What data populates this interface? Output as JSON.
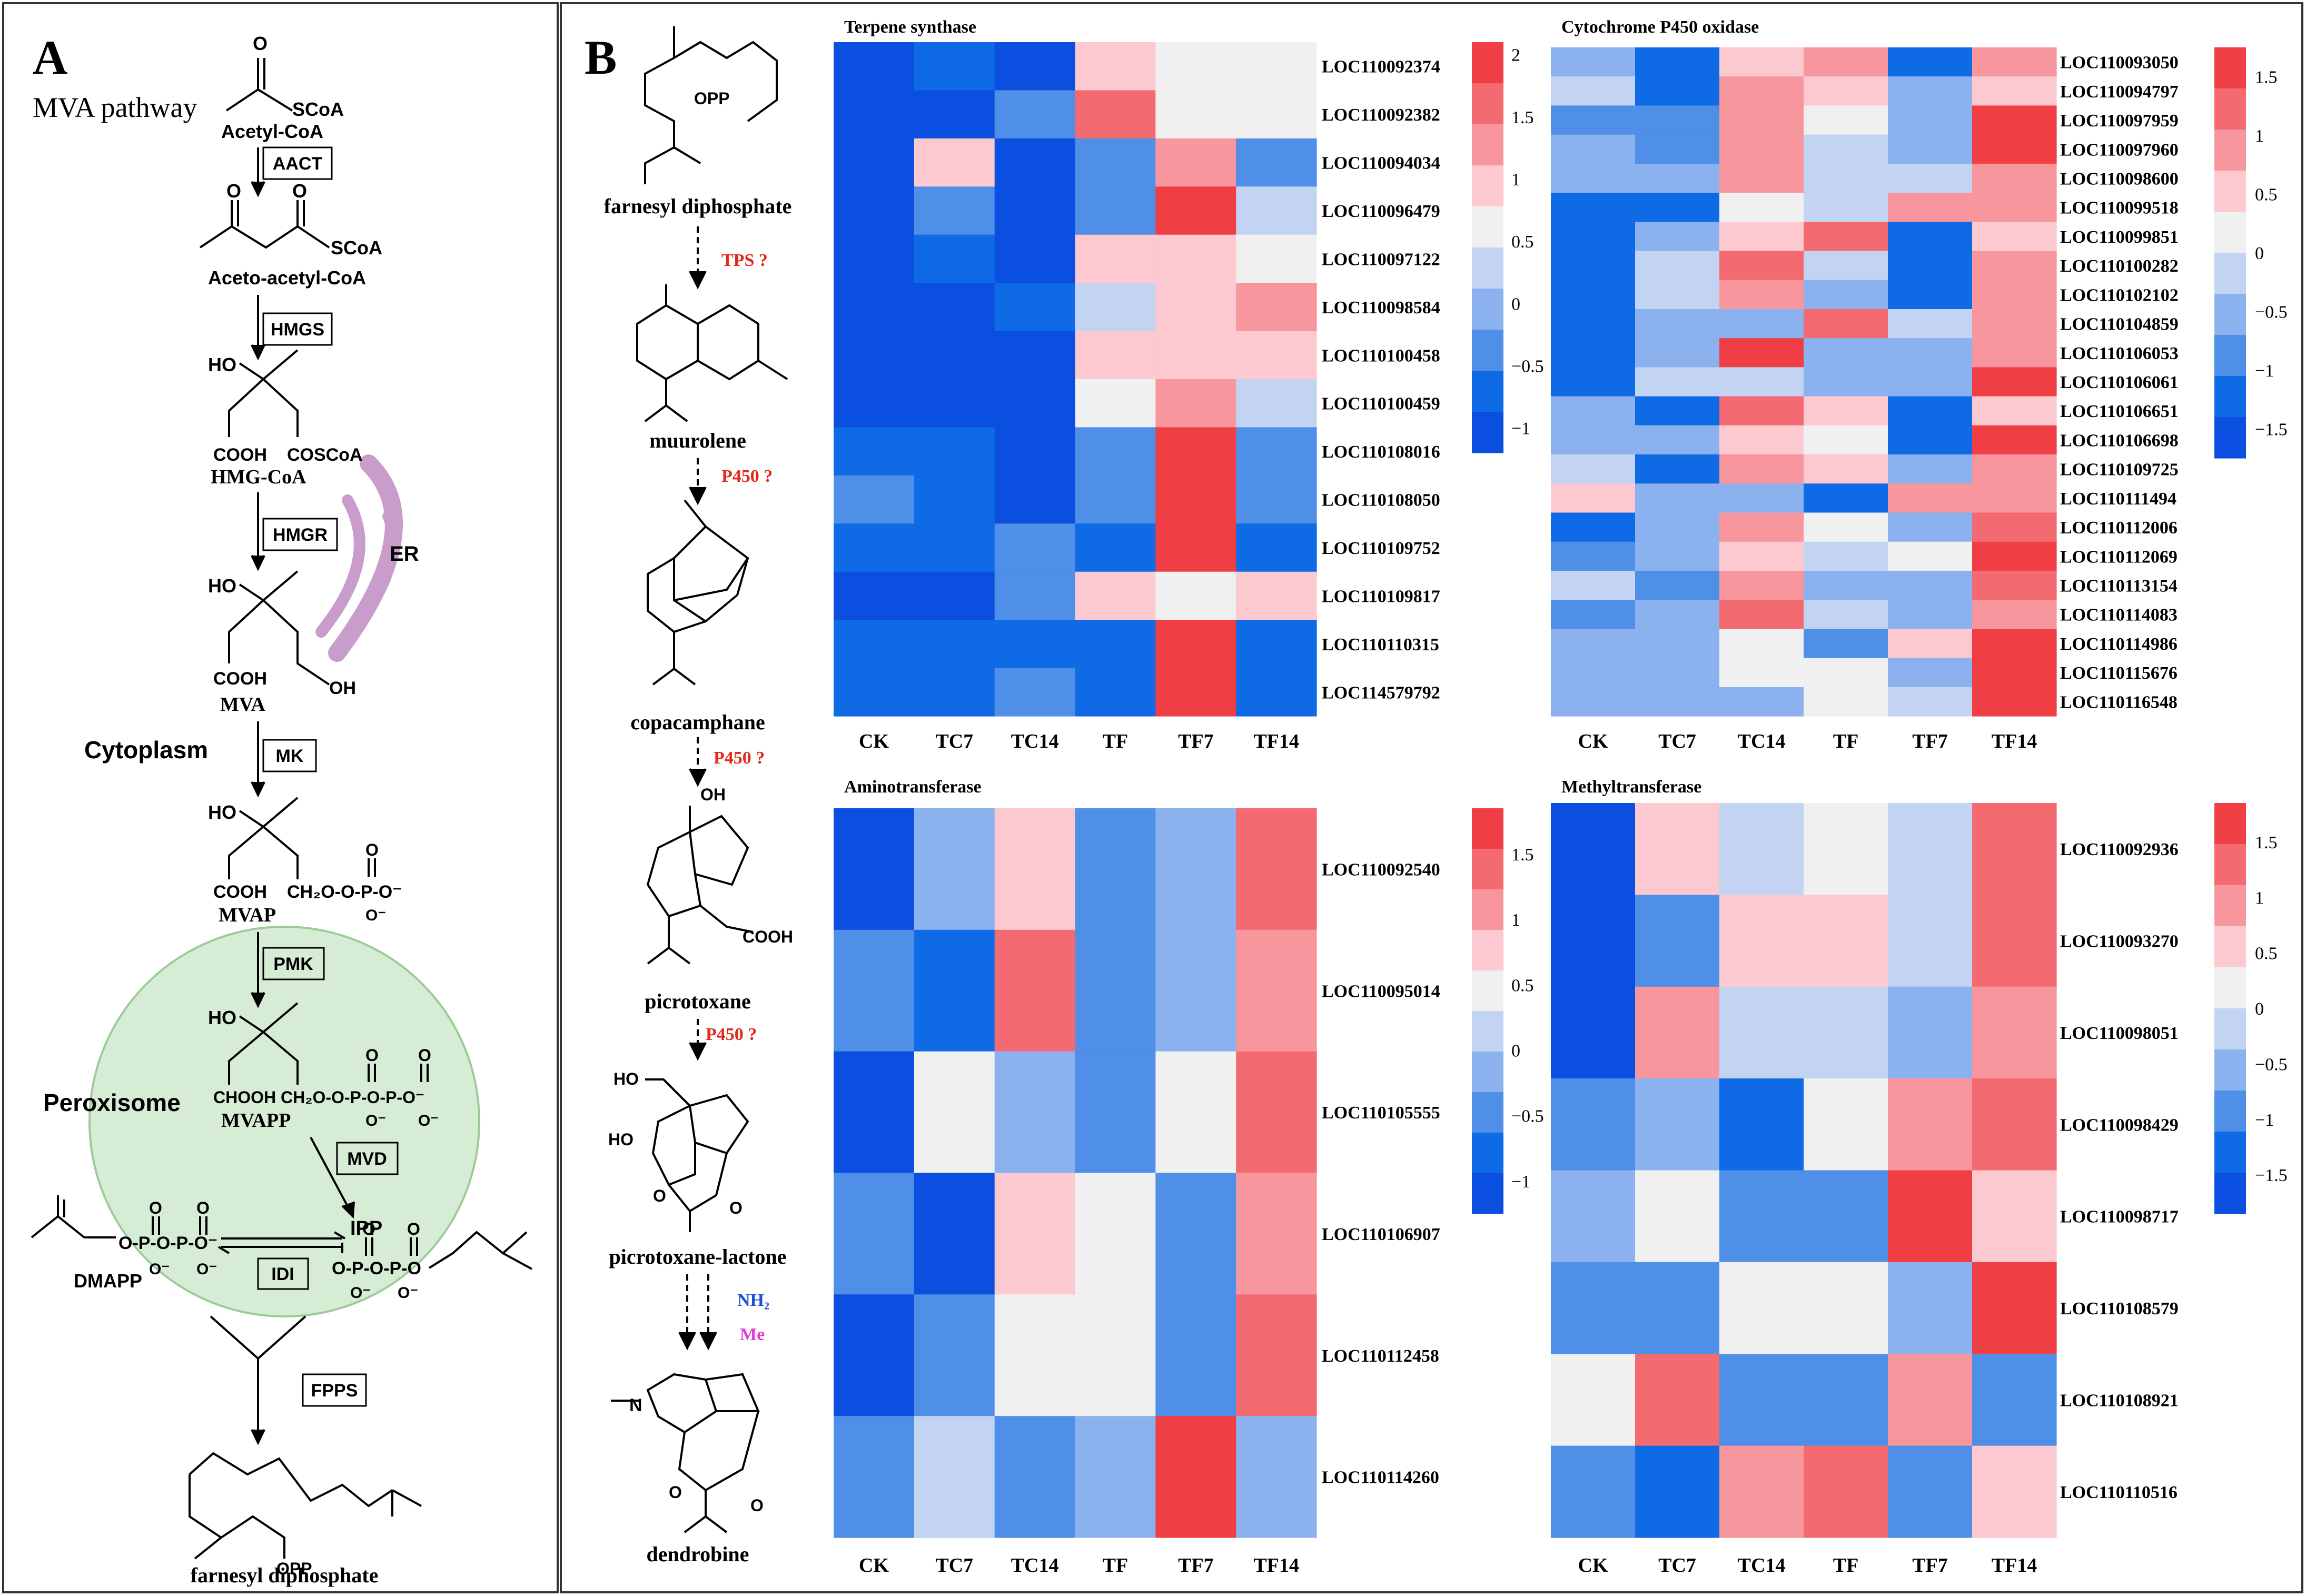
{
  "colors": {
    "scale": [
      "#0b4fe0",
      "#0f6ae6",
      "#4f8fe8",
      "#8bb2ef",
      "#c2d4f2",
      "#f0f0f0",
      "#fbc9cf",
      "#f7979d",
      "#f36a70",
      "#f03f44"
    ],
    "peroxisome": "#d7ecd5",
    "peroxisome_stroke": "#9ccb97",
    "er": "#c89ccb",
    "red_text": "#e42718",
    "blue_text": "#1a4fd8",
    "pink_text": "#e23bd6",
    "border": "#333333"
  },
  "panel_a": {
    "letter": "A",
    "title": "MVA pathway",
    "compartments": {
      "cytoplasm": "Cytoplasm",
      "peroxisome": "Peroxisome",
      "er": "ER"
    },
    "metabolites": {
      "acetyl_coa": "Acetyl-CoA",
      "acetoacetyl_coa": "Aceto-acetyl-CoA",
      "hmg_coa": "HMG-CoA",
      "mva": "MVA",
      "mvap": "MVAP",
      "mvapp": "MVAPP",
      "ipp": "IPP",
      "dmapp": "DMAPP",
      "fpp": "farnesyl diphosphate"
    },
    "atoms": {
      "scoa": "SCoA",
      "o": "O",
      "ho": "HO",
      "oh": "OH",
      "cooh": "COOH",
      "coscoa": "COSCoA",
      "ch2o_p": "CH₂O-O-P-O⁻",
      "choohch2": "CHOOH CH₂O-O-P-O-P-O⁻",
      "o_minus": "O⁻",
      "opp": "OPP",
      "dmapp_pp": "O-P-O-P-O⁻",
      "ipp_pp": "O-P-O-P-O"
    },
    "enzymes": [
      "AACT",
      "HMGS",
      "HMGR",
      "MK",
      "PMK",
      "MVD",
      "IDI",
      "FPPS"
    ]
  },
  "panel_b": {
    "letter": "B",
    "pathway": {
      "compounds": [
        "farnesyl diphosphate",
        "muurolene",
        "copacamphane",
        "picrotoxane",
        "picrotoxane-lactone",
        "dendrobine"
      ],
      "steps": [
        "TPS ?",
        "P450 ?",
        "P450 ?",
        "P450 ?"
      ],
      "mods": [
        "NH₂",
        "Me"
      ],
      "atoms": {
        "opp": "OPP",
        "oh": "OH",
        "ho": "HO",
        "cooh": "COOH",
        "o": "O",
        "n": "N"
      }
    }
  },
  "chart_data": [
    {
      "type": "heatmap",
      "title": "Terpene synthase",
      "columns": [
        "CK",
        "TC7",
        "TC14",
        "TF",
        "TF7",
        "TF14"
      ],
      "rows": [
        "LOC110092374",
        "LOC110092382",
        "LOC110094034",
        "LOC110096479",
        "LOC110097122",
        "LOC110098584",
        "LOC110100458",
        "LOC110100459",
        "LOC110108016",
        "LOC110108050",
        "LOC110109752",
        "LOC110109817",
        "LOC110110315",
        "LOC114579792"
      ],
      "values": [
        [
          -1.1,
          -0.6,
          -1.1,
          1.1,
          0.7,
          0.5
        ],
        [
          -1.1,
          -1.0,
          -0.3,
          1.5,
          0.5,
          0.5
        ],
        [
          -1.0,
          1.0,
          -1.1,
          -0.3,
          1.2,
          -0.3
        ],
        [
          -1.0,
          -0.3,
          -1.1,
          -0.3,
          1.9,
          0.2
        ],
        [
          -1.1,
          -0.6,
          -1.1,
          0.8,
          0.8,
          0.5
        ],
        [
          -1.0,
          -1.1,
          -0.6,
          0.2,
          0.8,
          1.4
        ],
        [
          -1.1,
          -1.0,
          -1.0,
          0.8,
          1.1,
          0.8
        ],
        [
          -1.0,
          -1.0,
          -1.0,
          0.5,
          1.4,
          0.2
        ],
        [
          -0.6,
          -0.6,
          -1.1,
          -0.3,
          1.9,
          -0.3
        ],
        [
          -0.3,
          -0.6,
          -0.9,
          -0.3,
          1.9,
          -0.3
        ],
        [
          -0.6,
          -0.6,
          -0.3,
          -0.6,
          1.9,
          -0.6
        ],
        [
          -1.1,
          -1.1,
          -0.3,
          0.8,
          0.5,
          0.8
        ],
        [
          -0.6,
          -0.6,
          -0.6,
          -0.6,
          1.9,
          -0.6
        ],
        [
          -0.6,
          -0.6,
          -0.3,
          -0.6,
          1.9,
          -0.6
        ]
      ],
      "colorbar": {
        "ticks": [
          "2",
          "1.5",
          "1",
          "0.5",
          "0",
          "−0.5",
          "−1"
        ],
        "min": -1.2,
        "max": 2.1
      }
    },
    {
      "type": "heatmap",
      "title": "Cytochrome P450 oxidase",
      "columns": [
        "CK",
        "TC7",
        "TC14",
        "TF",
        "TF7",
        "TF14"
      ],
      "rows": [
        "LOC110093050",
        "LOC110094797",
        "LOC110097959",
        "LOC110097960",
        "LOC110098600",
        "LOC110099518",
        "LOC110099851",
        "LOC110100282",
        "LOC110102102",
        "LOC110104859",
        "LOC110106053",
        "LOC110106061",
        "LOC110106651",
        "LOC110106698",
        "LOC110109725",
        "LOC110111494",
        "LOC110112006",
        "LOC110112069",
        "LOC110113154",
        "LOC110114083",
        "LOC110114986",
        "LOC110115676",
        "LOC110116548"
      ],
      "values": [
        [
          -0.6,
          -1.2,
          0.6,
          0.9,
          -1.2,
          1.0
        ],
        [
          -0.2,
          -1.2,
          0.9,
          0.5,
          -0.6,
          0.5
        ],
        [
          -1.0,
          -1.0,
          0.9,
          0.1,
          -0.6,
          1.4
        ],
        [
          -0.6,
          -1.0,
          0.9,
          -0.2,
          -0.6,
          1.4
        ],
        [
          -0.6,
          -0.6,
          0.9,
          -0.2,
          -0.2,
          1.0
        ],
        [
          -1.2,
          -1.2,
          0.1,
          -0.2,
          0.9,
          0.9
        ],
        [
          -1.2,
          -0.6,
          0.5,
          1.3,
          -1.2,
          0.5
        ],
        [
          -1.2,
          -0.2,
          1.3,
          -0.2,
          -1.2,
          0.9
        ],
        [
          -1.2,
          -0.2,
          0.9,
          -0.6,
          -1.2,
          0.9
        ],
        [
          -1.2,
          -0.6,
          -0.6,
          1.3,
          -0.2,
          0.9
        ],
        [
          -1.2,
          -0.6,
          1.7,
          -0.6,
          -0.6,
          0.9
        ],
        [
          -1.2,
          -0.2,
          -0.2,
          -0.6,
          -0.6,
          1.7
        ],
        [
          -0.6,
          -1.2,
          1.3,
          0.5,
          -1.2,
          0.5
        ],
        [
          -0.6,
          -0.6,
          0.5,
          0.1,
          -1.2,
          1.7
        ],
        [
          -0.2,
          -1.2,
          0.9,
          0.5,
          -0.6,
          0.9
        ],
        [
          0.5,
          -0.6,
          -0.6,
          -1.2,
          0.9,
          0.9
        ],
        [
          -1.2,
          -0.6,
          0.9,
          0.1,
          -0.6,
          1.3
        ],
        [
          -1.0,
          -0.6,
          0.5,
          -0.2,
          0.1,
          1.7
        ],
        [
          -0.2,
          -1.0,
          0.9,
          -0.6,
          -0.6,
          1.3
        ],
        [
          -1.0,
          -0.6,
          1.3,
          -0.2,
          -0.6,
          0.9
        ],
        [
          -0.6,
          -0.6,
          0.1,
          -1.0,
          0.5,
          1.7
        ],
        [
          -0.6,
          -0.6,
          0.1,
          0.1,
          -0.6,
          1.7
        ],
        [
          -0.6,
          -0.6,
          -0.6,
          0.1,
          -0.2,
          1.7
        ]
      ],
      "colorbar": {
        "ticks": [
          "1.5",
          "1",
          "0.5",
          "0",
          "−0.5",
          "−1",
          "−1.5"
        ],
        "min": -1.75,
        "max": 1.75
      }
    },
    {
      "type": "heatmap",
      "title": "Aminotransferase",
      "columns": [
        "CK",
        "TC7",
        "TC14",
        "TF",
        "TF7",
        "TF14"
      ],
      "rows": [
        "LOC110092540",
        "LOC110095014",
        "LOC110105555",
        "LOC110106907",
        "LOC110112458",
        "LOC110114260"
      ],
      "values": [
        [
          -1.1,
          -0.3,
          0.9,
          -0.6,
          -0.3,
          1.3
        ],
        [
          -0.6,
          -0.9,
          1.3,
          -0.6,
          -0.3,
          1.0
        ],
        [
          -1.1,
          0.3,
          -0.3,
          -0.6,
          0.3,
          1.3
        ],
        [
          -0.6,
          -1.1,
          0.9,
          0.3,
          -0.6,
          1.0
        ],
        [
          -1.1,
          -0.6,
          0.3,
          0.3,
          -0.6,
          1.3
        ],
        [
          -0.6,
          0.0,
          -0.6,
          -0.3,
          1.7,
          -0.3
        ]
      ],
      "colorbar": {
        "ticks": [
          "1.5",
          "1",
          "0.5",
          "0",
          "−0.5",
          "−1"
        ],
        "min": -1.25,
        "max": 1.85
      }
    },
    {
      "type": "heatmap",
      "title": "Methyltransferase",
      "columns": [
        "CK",
        "TC7",
        "TC14",
        "TF",
        "TF7",
        "TF14"
      ],
      "rows": [
        "LOC110092936",
        "LOC110093270",
        "LOC110098051",
        "LOC110098429",
        "LOC110098717",
        "LOC110108579",
        "LOC110108921",
        "LOC110110516"
      ],
      "values": [
        [
          -1.6,
          0.6,
          -0.2,
          0.2,
          -0.2,
          1.3
        ],
        [
          -1.6,
          -0.8,
          0.6,
          0.6,
          -0.2,
          1.3
        ],
        [
          -1.6,
          1.0,
          -0.2,
          -0.2,
          -0.5,
          1.0
        ],
        [
          -0.8,
          -0.5,
          -1.2,
          0.2,
          1.0,
          1.3
        ],
        [
          -0.5,
          0.2,
          -0.8,
          -0.8,
          1.7,
          0.6
        ],
        [
          -0.8,
          -0.8,
          0.2,
          0.2,
          -0.5,
          1.7
        ],
        [
          0.2,
          1.3,
          -0.8,
          -0.8,
          1.0,
          -0.8
        ],
        [
          -0.8,
          -1.2,
          1.0,
          1.3,
          -0.8,
          0.6
        ]
      ],
      "colorbar": {
        "ticks": [
          "1.5",
          "1",
          "0.5",
          "0",
          "−0.5",
          "−1",
          "−1.5"
        ],
        "min": -1.85,
        "max": 1.85
      }
    }
  ]
}
